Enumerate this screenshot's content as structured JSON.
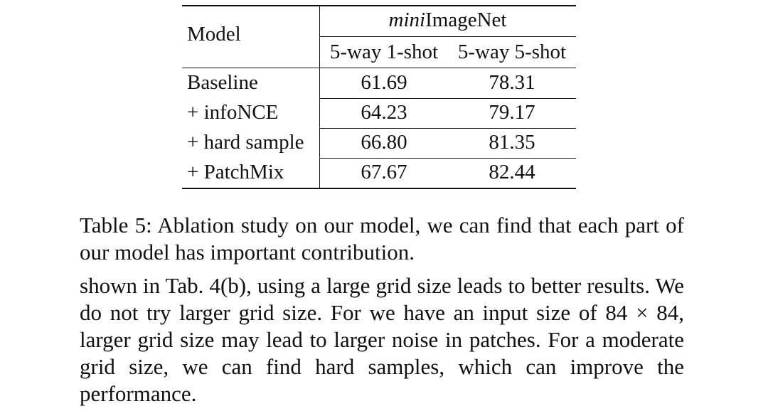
{
  "table": {
    "number_label": "Table 5",
    "model_header": "Model",
    "dataset_header_italic": "mini",
    "dataset_header_rest": "ImageNet",
    "columns": [
      "5-way 1-shot",
      "5-way 5-shot"
    ],
    "rows": [
      {
        "model": "Baseline",
        "values": [
          "61.69",
          "78.31"
        ]
      },
      {
        "model": "+ infoNCE",
        "values": [
          "64.23",
          "79.17"
        ]
      },
      {
        "model": "+ hard sample",
        "values": [
          "66.80",
          "81.35"
        ]
      },
      {
        "model": "+ PatchMix",
        "values": [
          "67.67",
          "82.44"
        ]
      }
    ]
  },
  "caption": "Table 5: Ablation study on our model, we can find that each part of our model has important contribution.",
  "body_text": "shown in Tab. 4(b), using a large grid size leads to better results. We do not try larger grid size. For we have an input size of 84 × 84, larger grid size may lead to larger noise in patches. For a moderate grid size, we can find hard samples, which can improve the performance."
}
